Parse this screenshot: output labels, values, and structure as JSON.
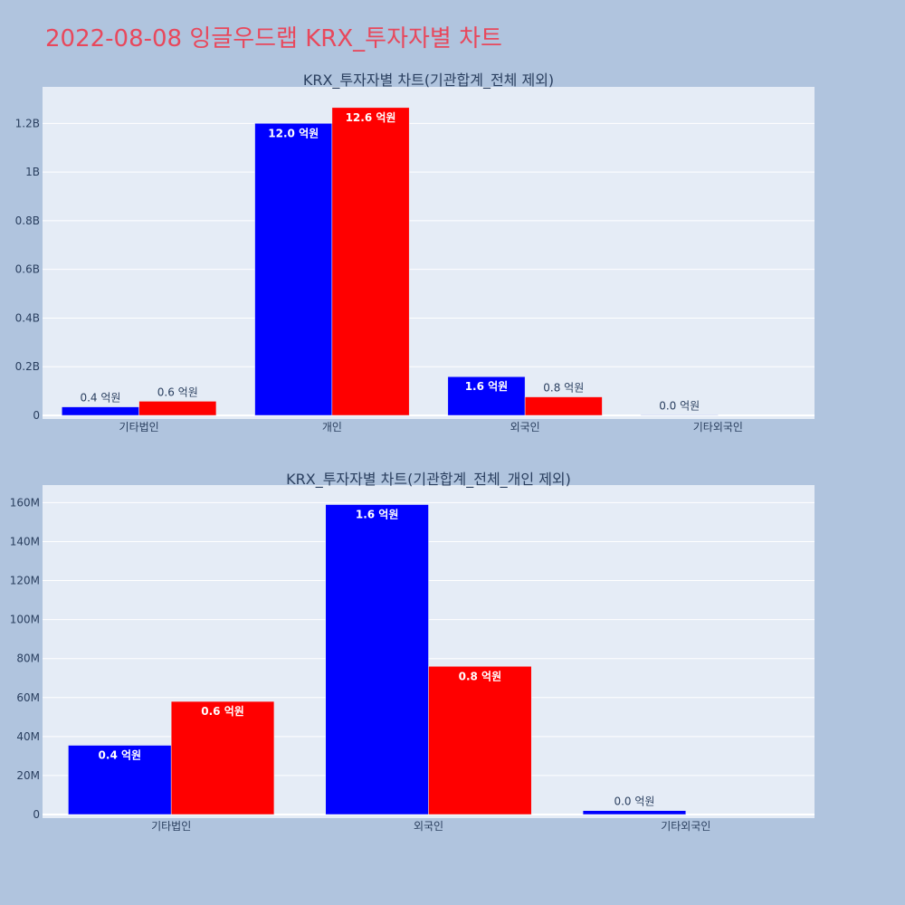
{
  "page": {
    "title": "2022-08-08 잉글우드랩 KRX_투자자별 차트"
  },
  "colors": {
    "buy": "#0000ff",
    "sell": "#ff0000",
    "plot_bg": "#e5ecf6",
    "page_bg": "#b0c4de",
    "title": "#e8485c"
  },
  "chart_data": [
    {
      "type": "bar",
      "title": "KRX_투자자별 차트(기관합계_전체 제외)",
      "categories": [
        "기타법인",
        "개인",
        "외국인",
        "기타외국인"
      ],
      "series": [
        {
          "values": [
            35000000,
            1200000000,
            159000000,
            2000000
          ],
          "labels": [
            "0.4 억원",
            "12.0 억원",
            "1.6 억원",
            "0.0 억원"
          ]
        },
        {
          "values": [
            58000000,
            1265000000,
            76000000,
            0
          ],
          "labels": [
            "0.6 억원",
            "12.6 억원",
            "0.8 억원",
            ""
          ]
        }
      ],
      "ylim": [
        0,
        1350000000
      ],
      "yticks": [
        0,
        200000000,
        400000000,
        600000000,
        800000000,
        1000000000,
        1200000000
      ],
      "yticklabels": [
        "0",
        "0.2B",
        "0.4B",
        "0.6B",
        "0.8B",
        "1B",
        "1.2B"
      ],
      "grid": true
    },
    {
      "type": "bar",
      "title": "KRX_투자자별 차트(기관합계_전체_개인 제외)",
      "categories": [
        "기타법인",
        "외국인",
        "기타외국인"
      ],
      "series": [
        {
          "values": [
            35500000,
            159000000,
            2000000
          ],
          "labels": [
            "0.4 억원",
            "1.6 억원",
            "0.0 억원"
          ]
        },
        {
          "values": [
            58000000,
            76000000,
            0
          ],
          "labels": [
            "0.6 억원",
            "0.8 억원",
            ""
          ]
        }
      ],
      "ylim": [
        0,
        169000000
      ],
      "yticks": [
        0,
        20000000,
        40000000,
        60000000,
        80000000,
        100000000,
        120000000,
        140000000,
        160000000
      ],
      "yticklabels": [
        "0",
        "20M",
        "40M",
        "60M",
        "80M",
        "100M",
        "120M",
        "140M",
        "160M"
      ],
      "grid": true
    }
  ]
}
